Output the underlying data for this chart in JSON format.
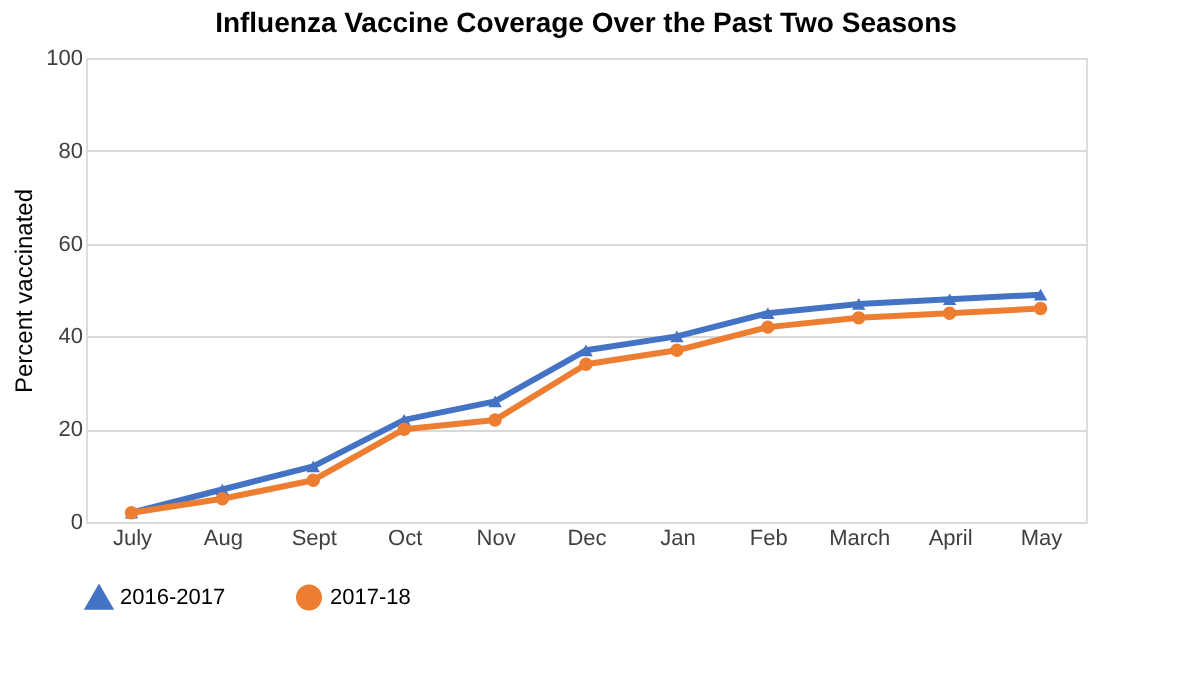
{
  "chart_data": {
    "type": "line",
    "title": "Influenza Vaccine Coverage Over the Past Two Seasons",
    "ylabel": "Percent vaccinated",
    "categories": [
      "July",
      "Aug",
      "Sept",
      "Oct",
      "Nov",
      "Dec",
      "Jan",
      "Feb",
      "March",
      "April",
      "May"
    ],
    "series": [
      {
        "name": "2016-2017",
        "color": "#4472c4",
        "marker": "triangle",
        "values": [
          2,
          7,
          12,
          22,
          26,
          37,
          40,
          45,
          47,
          48,
          49
        ]
      },
      {
        "name": "2017-18",
        "color": "#ed7d31",
        "marker": "circle",
        "values": [
          2,
          5,
          9,
          20,
          22,
          34,
          37,
          42,
          44,
          45,
          46
        ]
      }
    ],
    "ylim": [
      0,
      100
    ],
    "yticks": [
      0,
      20,
      40,
      60,
      80,
      100
    ],
    "grid": "y",
    "legend": "bottom",
    "line_style": "solid"
  }
}
